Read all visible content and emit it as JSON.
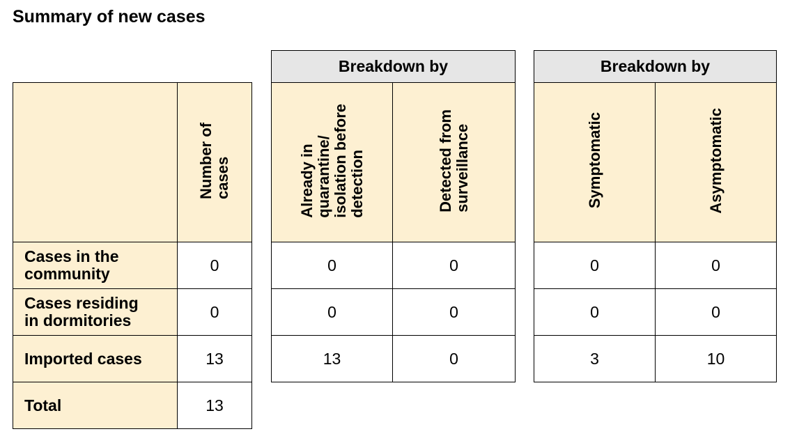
{
  "title": "Summary of new cases",
  "main_table": {
    "column_header": [
      "Number of",
      "cases"
    ],
    "rows": [
      {
        "label": [
          "Cases in the",
          "community"
        ],
        "value": "0"
      },
      {
        "label": [
          "Cases residing",
          "in dormitories"
        ],
        "value": "0"
      },
      {
        "label": [
          "Imported cases"
        ],
        "value": "13"
      },
      {
        "label": [
          "Total"
        ],
        "value": "13"
      }
    ]
  },
  "breakdown_1": {
    "title": "Breakdown by",
    "columns": [
      [
        "Already in",
        "quarantine/",
        "isolation before",
        "detection"
      ],
      [
        "Detected from",
        "surveillance"
      ]
    ],
    "rows": [
      [
        "0",
        "0"
      ],
      [
        "0",
        "0"
      ],
      [
        "13",
        "0"
      ]
    ]
  },
  "breakdown_2": {
    "title": "Breakdown by",
    "columns": [
      [
        "Symptomatic"
      ],
      [
        "Asymptomatic"
      ]
    ],
    "rows": [
      [
        "0",
        "0"
      ],
      [
        "0",
        "0"
      ],
      [
        "3",
        "10"
      ]
    ]
  },
  "colors": {
    "header_fill": "#fdf0d2",
    "breakdown_title_fill": "#e6e6e6",
    "border": "#000000"
  }
}
